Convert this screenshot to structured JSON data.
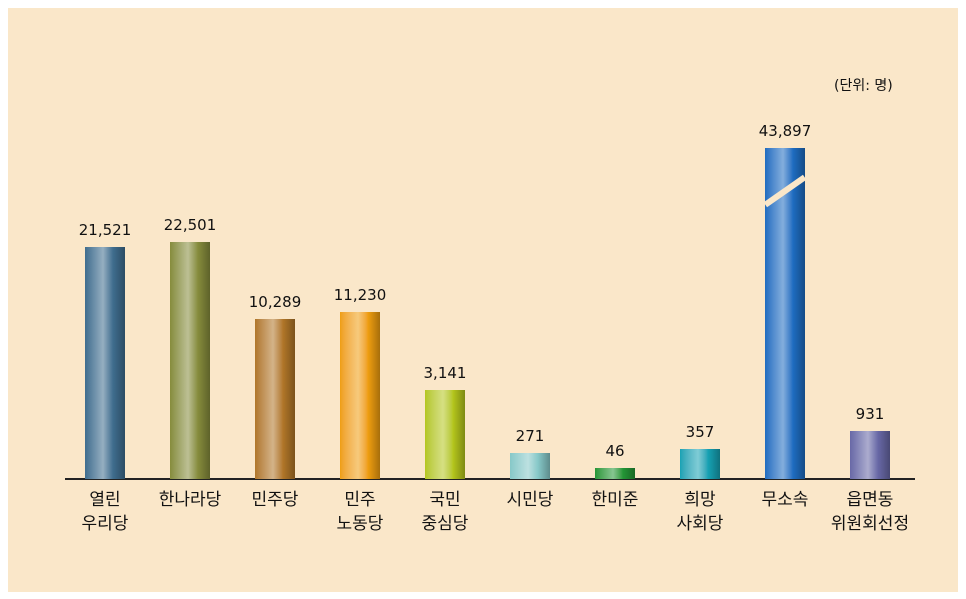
{
  "chart_data": {
    "type": "bar",
    "unit_label": "(단위: 명)",
    "categories": [
      "열린\n우리당",
      "한나라당",
      "민주당",
      "민주\n노동당",
      "국민\n중심당",
      "시민당",
      "한미준",
      "희망\n사회당",
      "무소속",
      "읍면동\n위원회선정"
    ],
    "values": [
      21521,
      22501,
      10289,
      11230,
      3141,
      271,
      46,
      357,
      43897,
      931
    ],
    "value_labels": [
      "21,521",
      "22,501",
      "10,289",
      "11,230",
      "3,141",
      "271",
      "46",
      "357",
      "43,897",
      "931"
    ],
    "colors": [
      "#3f6d8e",
      "#868c3c",
      "#b07628",
      "#ef9e10",
      "#b4c61c",
      "#86c8c8",
      "#239636",
      "#16a2b4",
      "#1e6cc0",
      "#6868a6"
    ]
  }
}
